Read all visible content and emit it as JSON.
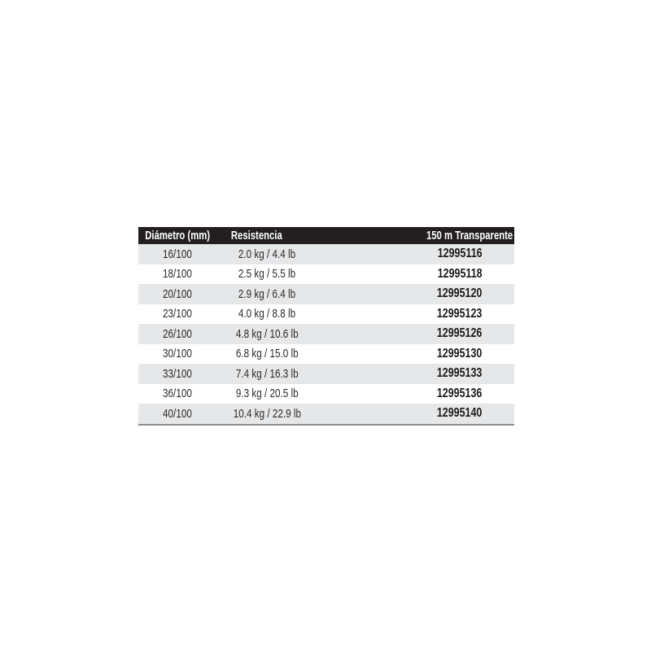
{
  "table": {
    "headers": [
      "Diámetro (mm)",
      "Resistencia",
      "150 m Transparente"
    ],
    "rows": [
      [
        "16/100",
        "2.0 kg / 4.4 lb",
        "12995116"
      ],
      [
        "18/100",
        "2.5 kg / 5.5 lb",
        "12995118"
      ],
      [
        "20/100",
        "2.9 kg / 6.4 lb",
        "12995120"
      ],
      [
        "23/100",
        "4.0 kg / 8.8 lb",
        "12995123"
      ],
      [
        "26/100",
        "4.8 kg / 10.6 lb",
        "12995126"
      ],
      [
        "30/100",
        "6.8 kg / 15.0 lb",
        "12995130"
      ],
      [
        "33/100",
        "7.4 kg / 16.3 lb",
        "12995133"
      ],
      [
        "36/100",
        "9.3 kg / 20.5 lb",
        "12995136"
      ],
      [
        "40/100",
        "10.4 kg / 22.9 lb",
        "12995140"
      ]
    ],
    "colors": {
      "header_bg": "#231f20",
      "header_text": "#ffffff",
      "stripe": "#e6e7e9"
    }
  }
}
